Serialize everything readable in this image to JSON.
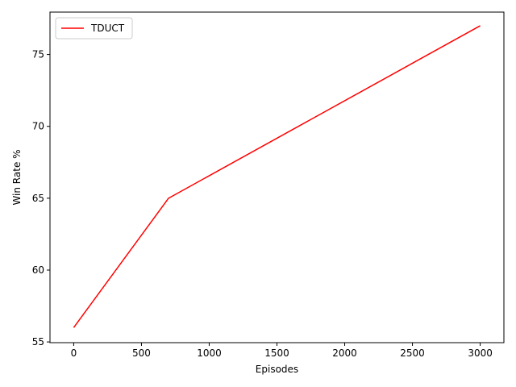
{
  "chart_data": {
    "type": "line",
    "title": "",
    "xlabel": "Episodes",
    "ylabel": "Win Rate %",
    "xlim": [
      -175,
      3175
    ],
    "ylim": [
      54.95,
      77.95
    ],
    "xticks": [
      0,
      500,
      1000,
      1500,
      2000,
      2500,
      3000
    ],
    "xtick_labels": [
      "0",
      "500",
      "1000",
      "1500",
      "2000",
      "2500",
      "3000"
    ],
    "yticks": [
      55,
      60,
      65,
      70,
      75
    ],
    "ytick_labels": [
      "55",
      "60",
      "65",
      "70",
      "75"
    ],
    "grid": false,
    "legend": "top-left",
    "series": [
      {
        "name": "TDUCT",
        "color": "#ff0000",
        "x": [
          0,
          700,
          3000
        ],
        "y": [
          56,
          65,
          77
        ]
      }
    ]
  }
}
